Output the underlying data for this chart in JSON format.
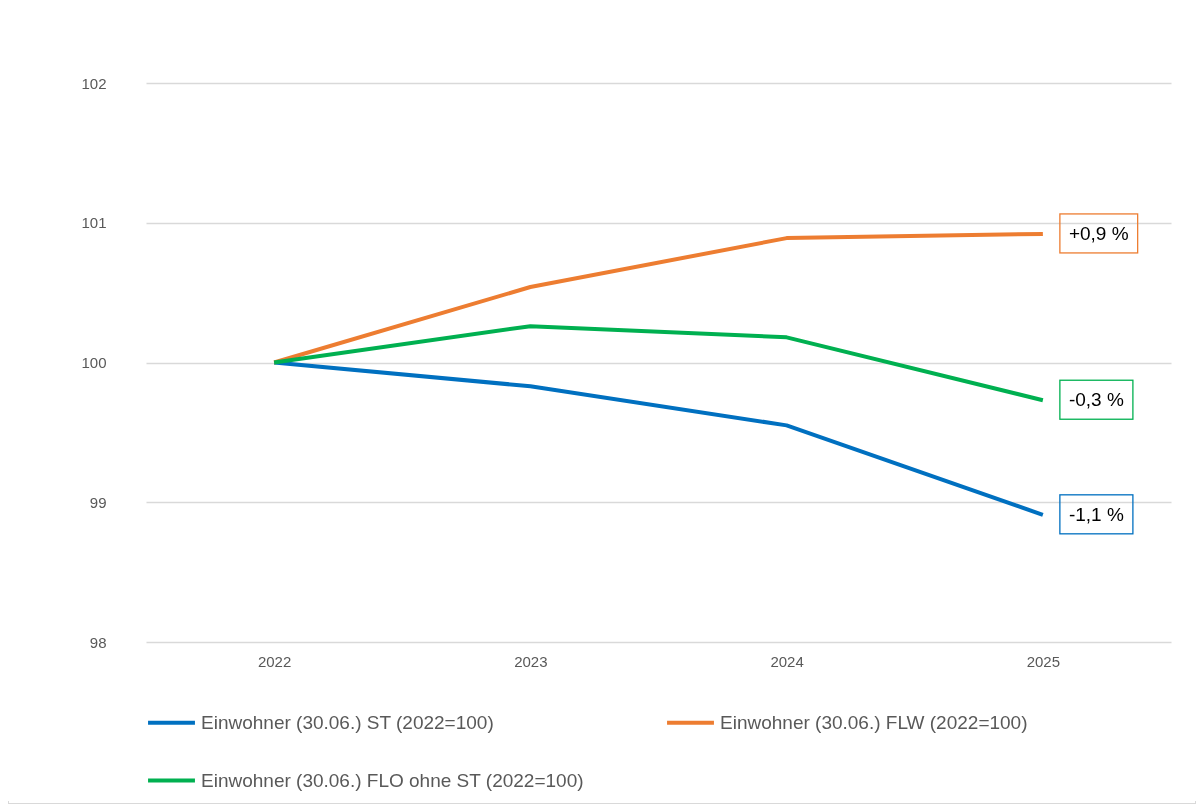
{
  "chart_data": {
    "type": "line",
    "categories": [
      "2022",
      "2023",
      "2024",
      "2025"
    ],
    "series": [
      {
        "name": "Einwohner (30.06.) ST (2022=100)",
        "color": "#0070c0",
        "values": [
          100,
          99.83,
          99.55,
          98.91
        ]
      },
      {
        "name": "Einwohner (30.06.) FLW (2022=100)",
        "color": "#ed7d31",
        "values": [
          100,
          100.54,
          100.89,
          100.92
        ]
      },
      {
        "name": "Einwohner (30.06.) FLO ohne ST (2022=100)",
        "color": "#00b050",
        "values": [
          100,
          100.26,
          100.18,
          99.73
        ]
      }
    ],
    "ylim": [
      98,
      102
    ],
    "yticks": [
      98,
      99,
      100,
      101,
      102
    ],
    "grid": "y",
    "legend": "bottom",
    "marker": "none",
    "line_style": "solid",
    "annotations": [
      {
        "text": "-1,1 %",
        "x": "2025",
        "y": 98.91
      },
      {
        "text": "+0,9 %",
        "x": "2025",
        "y": 100.92
      },
      {
        "text": "-0,3 %",
        "x": "2025",
        "y": 99.73
      }
    ]
  }
}
